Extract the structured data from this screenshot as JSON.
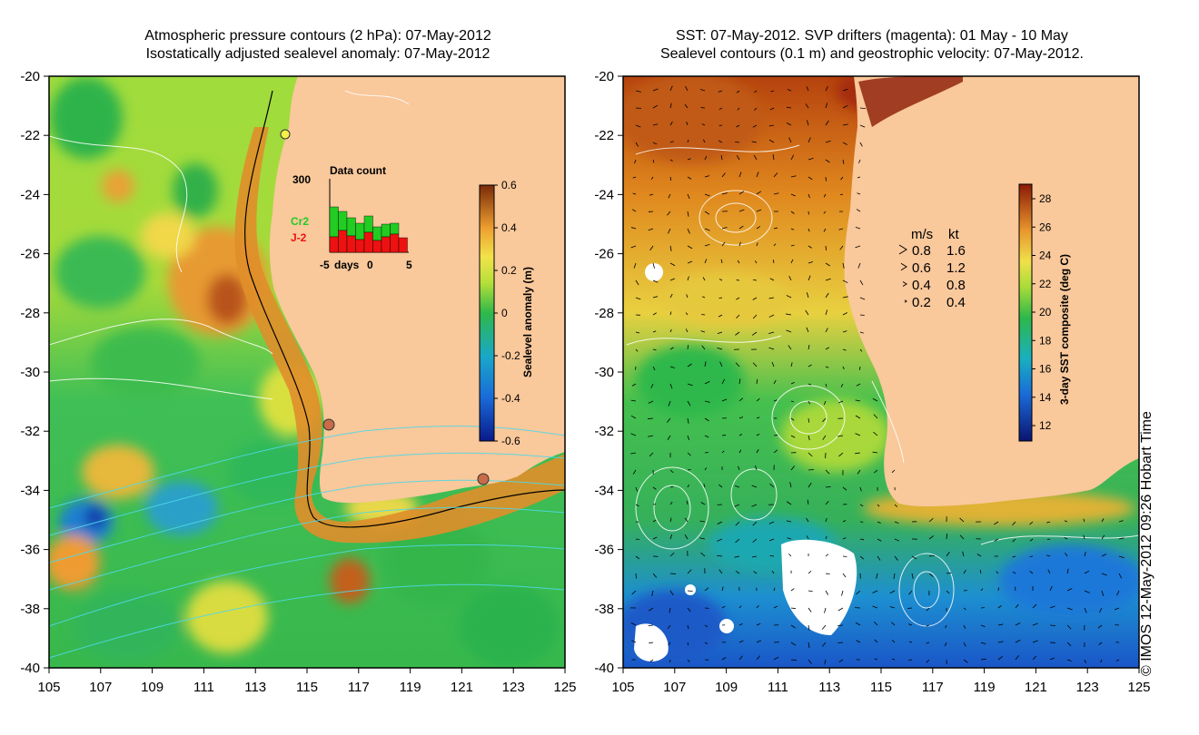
{
  "left_panel": {
    "title_line1": "Atmospheric pressure contours (2 hPa): 07-May-2012",
    "title_line2": "Isostatically adjusted sealevel anomaly: 07-May-2012",
    "colorbar_label": "Sealevel anomaly (m)",
    "colorbar_ticks": [
      "0.6",
      "0.4",
      "0.2",
      "0",
      "-0.2",
      "-0.4",
      "-0.6"
    ],
    "inset": {
      "title": "Data count",
      "ymax_label": "300",
      "xlabel": "days",
      "xtick_left": "-5",
      "xtick_mid": "0",
      "xtick_right": "5",
      "series_a": "Cr2",
      "series_b": "J-2"
    }
  },
  "right_panel": {
    "title_line1": "SST: 07-May-2012. SVP drifters (magenta): 01 May - 10 May",
    "title_line2": "Sealevel contours (0.1 m) and geostrophic velocity: 07-May-2012.",
    "colorbar_label": "3-day SST composite (deg C)",
    "colorbar_ticks": [
      "28",
      "26",
      "24",
      "22",
      "20",
      "18",
      "16",
      "14",
      "12"
    ],
    "velocity_legend": {
      "unit_ms": "m/s",
      "unit_kt": "kt",
      "rows": [
        {
          "ms": "0.8",
          "kt": "1.6"
        },
        {
          "ms": "0.6",
          "kt": "1.2"
        },
        {
          "ms": "0.4",
          "kt": "0.8"
        },
        {
          "ms": "0.2",
          "kt": "0.4"
        }
      ]
    }
  },
  "axes": {
    "lat_ticks": [
      "-20",
      "-22",
      "-24",
      "-26",
      "-28",
      "-30",
      "-32",
      "-34",
      "-36",
      "-38",
      "-40"
    ],
    "lon_ticks": [
      "105",
      "107",
      "109",
      "111",
      "113",
      "115",
      "117",
      "119",
      "121",
      "123",
      "125"
    ]
  },
  "copyright": "© IMOS 12-May-2012 09:26 Hobart Time",
  "colors": {
    "land": "#f9c89b",
    "sla_high": "#7a2a08",
    "sla_low": "#0a1a8a",
    "sst_high": "#8a1a05",
    "sst_low": "#0a1470",
    "cr2": "#22cc22",
    "j2": "#ee1111"
  }
}
